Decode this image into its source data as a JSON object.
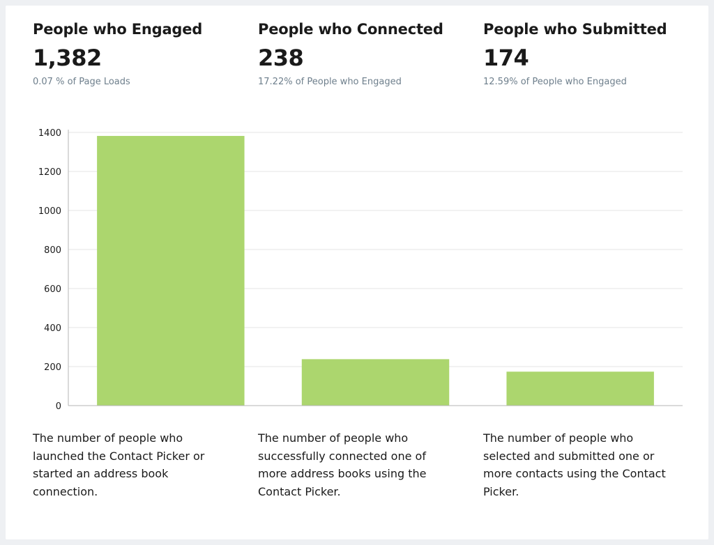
{
  "stats": [
    {
      "title": "People who Engaged",
      "value": "1,382",
      "sub": "0.07 % of Page Loads"
    },
    {
      "title": "People who Connected",
      "value": "238",
      "sub": "17.22% of People who Engaged"
    },
    {
      "title": "People who Submitted",
      "value": "174",
      "sub": "12.59% of People who Engaged"
    }
  ],
  "descriptions": [
    "The number of people who launched the Contact Picker or started an address book connection.",
    "The number of people who successfully connected one of more address books using the Contact Picker.",
    "The number of people who selected and submitted one or more contacts using the Contact Picker."
  ],
  "colors": {
    "bar": "#acd66e",
    "grid": "#e6e6e6",
    "axis": "#b5b5b5"
  },
  "chart_data": {
    "type": "bar",
    "categories": [
      "People who Engaged",
      "People who Connected",
      "People who Submitted"
    ],
    "values": [
      1382,
      238,
      174
    ],
    "ylim": [
      0,
      1400
    ],
    "yticks": [
      0,
      200,
      400,
      600,
      800,
      1000,
      1200,
      1400
    ],
    "grid": true,
    "legend": "none",
    "title": "",
    "xlabel": "",
    "ylabel": ""
  }
}
